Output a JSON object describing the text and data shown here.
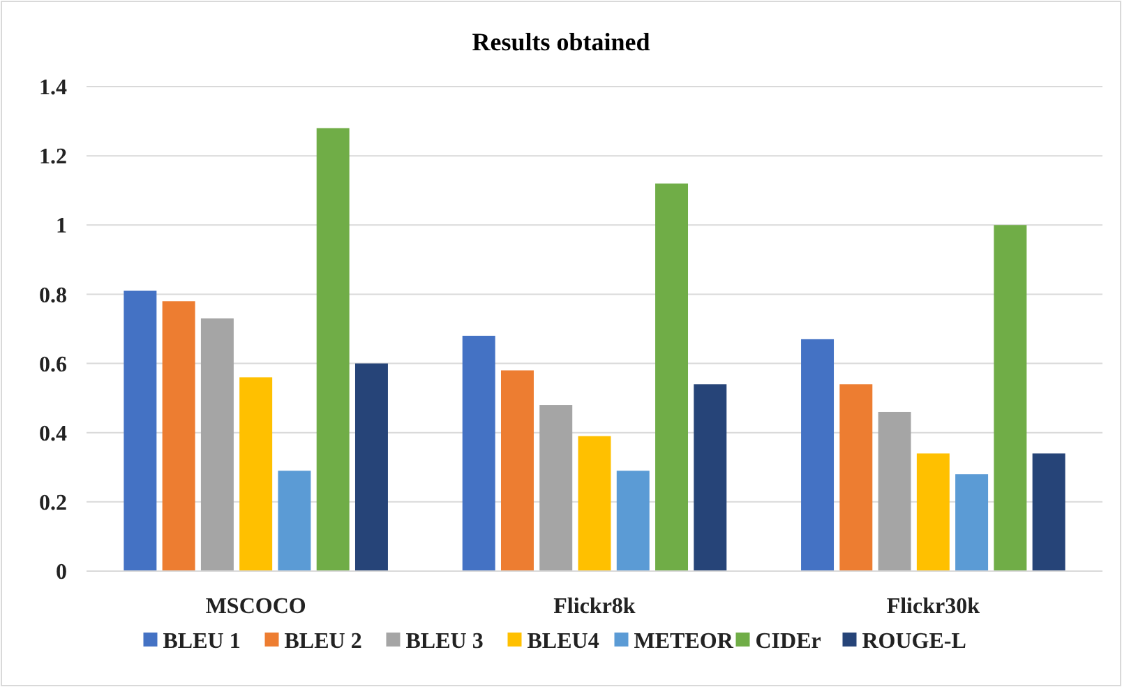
{
  "chart_data": {
    "type": "bar",
    "title": "Results obtained",
    "categories": [
      "MSCOCO",
      "Flickr8k",
      "Flickr30k"
    ],
    "series": [
      {
        "name": "BLEU 1",
        "color": "#4472c4",
        "values": [
          0.81,
          0.68,
          0.67
        ]
      },
      {
        "name": "BLEU 2",
        "color": "#ed7d31",
        "values": [
          0.78,
          0.58,
          0.54
        ]
      },
      {
        "name": "BLEU 3",
        "color": "#a5a5a5",
        "values": [
          0.73,
          0.48,
          0.46
        ]
      },
      {
        "name": "BLEU4",
        "color": "#ffc000",
        "values": [
          0.56,
          0.39,
          0.34
        ]
      },
      {
        "name": "METEOR",
        "color": "#5b9bd5",
        "values": [
          0.29,
          0.29,
          0.28
        ]
      },
      {
        "name": "CIDEr",
        "color": "#70ad47",
        "values": [
          1.28,
          1.12,
          1.0
        ]
      },
      {
        "name": "ROUGE-L",
        "color": "#264478",
        "values": [
          0.6,
          0.54,
          0.34
        ]
      }
    ],
    "ylim": [
      0,
      1.4
    ],
    "yticks": [
      0,
      0.2,
      0.4,
      0.6,
      0.8,
      1,
      1.2,
      1.4
    ],
    "grid": true,
    "legend": "bottom"
  }
}
